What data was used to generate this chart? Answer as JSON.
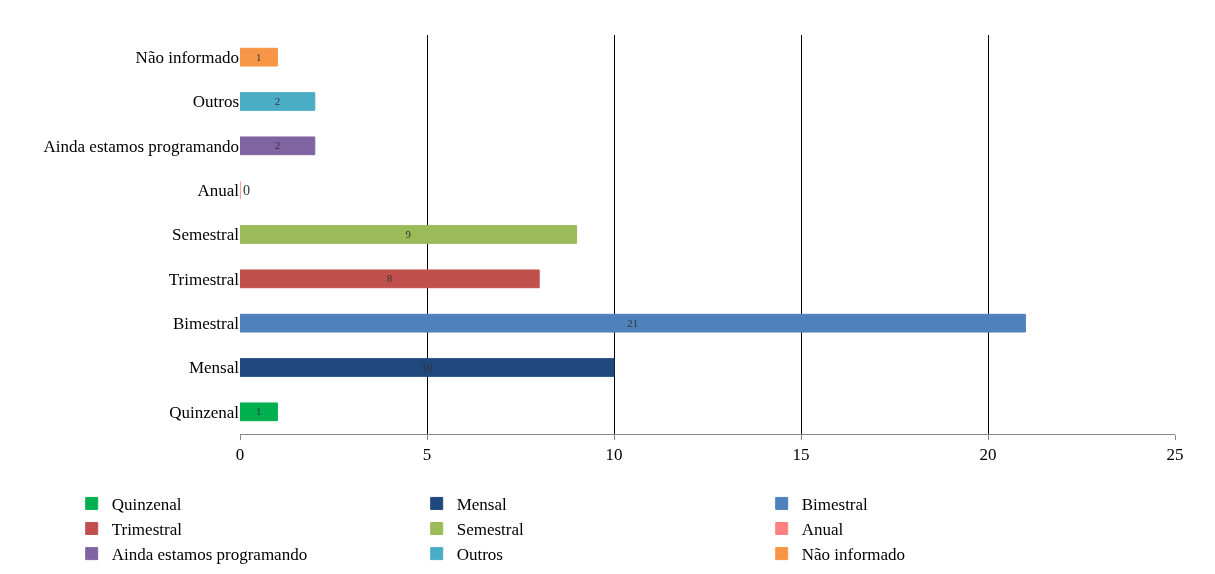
{
  "chart_data": {
    "type": "bar",
    "orientation": "horizontal",
    "categories": [
      "Não informado",
      "Outros",
      "Ainda estamos programando",
      "Anual",
      "Semestral",
      "Trimestral",
      "Bimestral",
      "Mensal",
      "Quinzenal"
    ],
    "series": [
      {
        "name": "Quinzenal",
        "color": "#00b050",
        "values": [
          null,
          null,
          null,
          null,
          null,
          null,
          null,
          null,
          1
        ]
      },
      {
        "name": "Mensal",
        "color": "#1f497d",
        "values": [
          null,
          null,
          null,
          null,
          null,
          null,
          null,
          10,
          null
        ]
      },
      {
        "name": "Bimestral",
        "color": "#4f81bd",
        "values": [
          null,
          null,
          null,
          null,
          null,
          null,
          21,
          null,
          null
        ]
      },
      {
        "name": "Trimestral",
        "color": "#c0504d",
        "values": [
          null,
          null,
          null,
          null,
          null,
          8,
          null,
          null,
          null
        ]
      },
      {
        "name": "Semestral",
        "color": "#9bbb59",
        "values": [
          null,
          null,
          null,
          null,
          9,
          null,
          null,
          null,
          null
        ]
      },
      {
        "name": "Anual",
        "color": "#ff8080",
        "values": [
          null,
          null,
          null,
          0,
          null,
          null,
          null,
          null,
          null
        ]
      },
      {
        "name": "Ainda estamos programando",
        "color": "#8064a2",
        "values": [
          null,
          null,
          2,
          null,
          null,
          null,
          null,
          null,
          null
        ]
      },
      {
        "name": "Outros",
        "color": "#4bacc6",
        "values": [
          null,
          2,
          null,
          null,
          null,
          null,
          null,
          null,
          null
        ]
      },
      {
        "name": "Não informado",
        "color": "#f79646",
        "values": [
          1,
          null,
          null,
          null,
          null,
          null,
          null,
          null,
          null
        ]
      }
    ],
    "xlim": [
      0,
      25
    ],
    "xticks": [
      0,
      5,
      10,
      15,
      20,
      25
    ],
    "grid": "x",
    "legend": "bottom",
    "data_labels": true
  }
}
